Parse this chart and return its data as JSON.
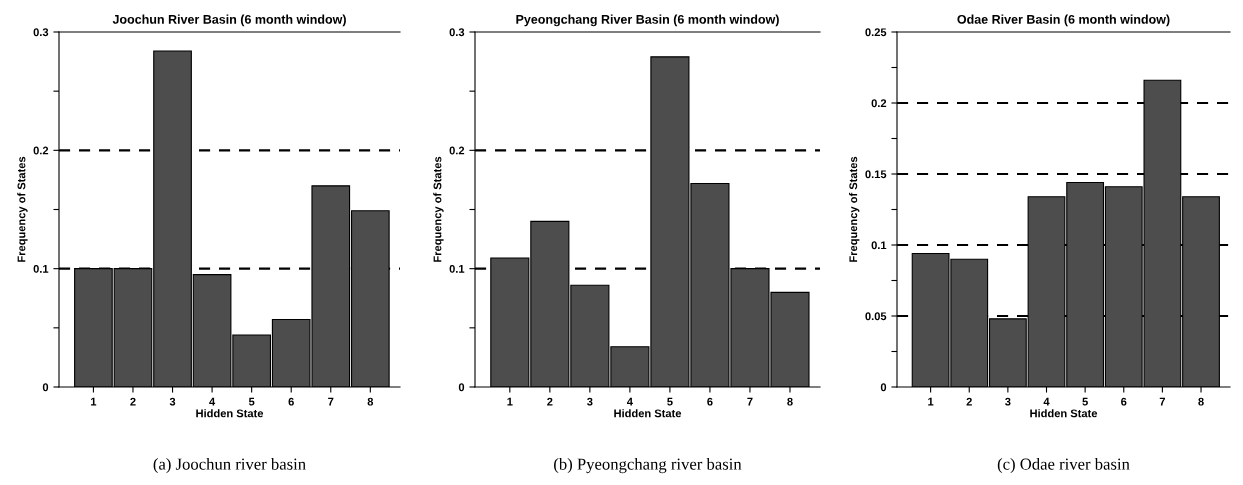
{
  "chart_data": [
    {
      "type": "bar",
      "title": "Joochun River Basin (6 month window)",
      "xlabel": "Hidden State",
      "ylabel": "Frequency of States",
      "categories": [
        "1",
        "2",
        "3",
        "4",
        "5",
        "6",
        "7",
        "8"
      ],
      "values": [
        0.1,
        0.1,
        0.284,
        0.095,
        0.044,
        0.057,
        0.17,
        0.149
      ],
      "color": "#4d4d4d",
      "ylim": [
        0,
        0.3
      ],
      "yticks": [
        0,
        {
          "value": 0.05,
          "label": null
        },
        0.1,
        {
          "value": 0.15,
          "label": null
        },
        0.2,
        {
          "value": 0.25,
          "label": null
        },
        0.3
      ],
      "ref_lines": [
        {
          "axis": "y",
          "value": 0.1,
          "line_style": "dashed",
          "color": "#000000"
        },
        {
          "axis": "y",
          "value": 0.2,
          "line_style": "dashed",
          "color": "#000000"
        }
      ],
      "annotations": [
        "(a) Joochun river basin"
      ]
    },
    {
      "type": "bar",
      "title": "Pyeongchang River Basin (6 month window)",
      "xlabel": "Hidden State",
      "ylabel": "Frequency of States",
      "categories": [
        "1",
        "2",
        "3",
        "4",
        "5",
        "6",
        "7",
        "8"
      ],
      "values": [
        0.109,
        0.14,
        0.086,
        0.034,
        0.279,
        0.172,
        0.1,
        0.08
      ],
      "color": "#4d4d4d",
      "ylim": [
        0,
        0.3
      ],
      "yticks": [
        0,
        {
          "value": 0.05,
          "label": null
        },
        0.1,
        {
          "value": 0.15,
          "label": null
        },
        0.2,
        {
          "value": 0.25,
          "label": null
        },
        0.3
      ],
      "ref_lines": [
        {
          "axis": "y",
          "value": 0.1,
          "line_style": "dashed",
          "color": "#000000"
        },
        {
          "axis": "y",
          "value": 0.2,
          "line_style": "dashed",
          "color": "#000000"
        }
      ],
      "annotations": [
        "(b) Pyeongchang river basin"
      ]
    },
    {
      "type": "bar",
      "title": "Odae River Basin (6 month window)",
      "xlabel": "Hidden State",
      "ylabel": "Frequency of States",
      "categories": [
        "1",
        "2",
        "3",
        "4",
        "5",
        "6",
        "7",
        "8"
      ],
      "values": [
        0.094,
        0.09,
        0.048,
        0.134,
        0.144,
        0.141,
        0.216,
        0.134
      ],
      "color": "#4d4d4d",
      "ylim": [
        0,
        0.25
      ],
      "yticks": [
        0,
        {
          "value": 0.025,
          "label": null
        },
        0.05,
        {
          "value": 0.075,
          "label": null
        },
        0.1,
        {
          "value": 0.125,
          "label": null
        },
        0.15,
        {
          "value": 0.175,
          "label": null
        },
        0.2,
        {
          "value": 0.225,
          "label": null
        },
        0.25
      ],
      "ref_lines": [
        {
          "axis": "y",
          "value": 0.05,
          "line_style": "dashed",
          "color": "#000000"
        },
        {
          "axis": "y",
          "value": 0.1,
          "line_style": "dashed",
          "color": "#000000"
        },
        {
          "axis": "y",
          "value": 0.15,
          "line_style": "dashed",
          "color": "#000000"
        },
        {
          "axis": "y",
          "value": 0.2,
          "line_style": "dashed",
          "color": "#000000"
        }
      ],
      "annotations": [
        "(c) Odae river basin"
      ]
    }
  ]
}
